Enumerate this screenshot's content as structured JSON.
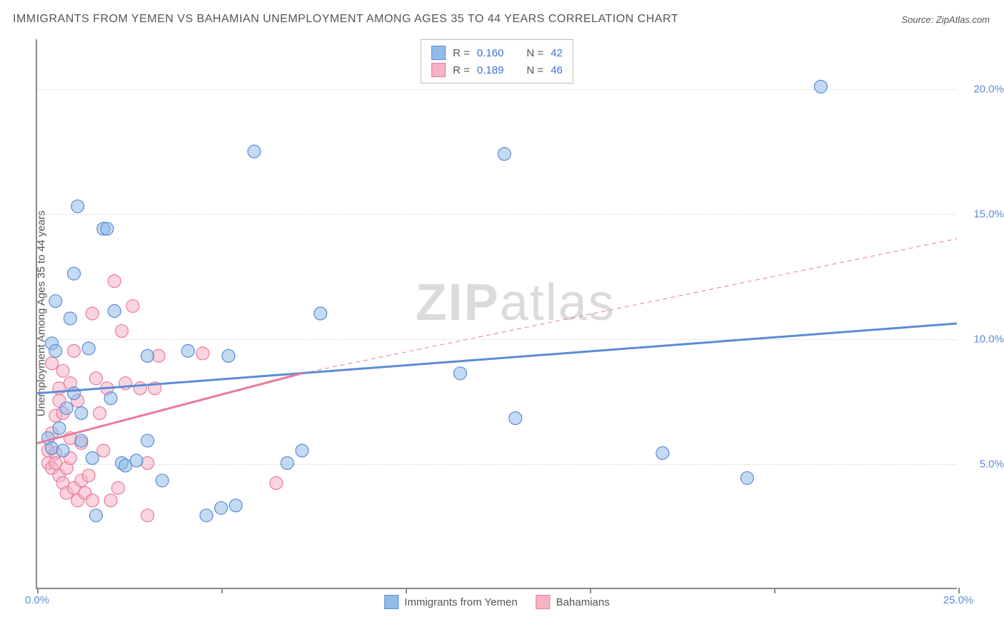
{
  "title": "IMMIGRANTS FROM YEMEN VS BAHAMIAN UNEMPLOYMENT AMONG AGES 35 TO 44 YEARS CORRELATION CHART",
  "source": "Source: ZipAtlas.com",
  "ylabel": "Unemployment Among Ages 35 to 44 years",
  "watermark_bold": "ZIP",
  "watermark_light": "atlas",
  "chart": {
    "type": "scatter",
    "xlim": [
      0,
      25
    ],
    "ylim": [
      0,
      22
    ],
    "x_ticks": [
      0,
      5,
      10,
      15,
      20,
      25
    ],
    "x_tick_labels": [
      "0.0%",
      "",
      "",
      "",
      "",
      "25.0%"
    ],
    "y_ticks": [
      5,
      10,
      15,
      20
    ],
    "y_tick_labels": [
      "5.0%",
      "10.0%",
      "15.0%",
      "20.0%"
    ],
    "y_grid": [
      5,
      10,
      15,
      20
    ],
    "background_color": "#ffffff",
    "grid_color": "#dddddd",
    "axis_color": "#888888",
    "tick_label_color": "#5b8cd6",
    "label_color": "#555555",
    "label_fontsize": 15,
    "title_fontsize": 16,
    "marker_radius": 9,
    "marker_opacity": 0.55,
    "series": [
      {
        "name": "Immigrants from Yemen",
        "color": "#8fbce8",
        "stroke": "#5b8cd6",
        "R": "0.160",
        "N": "42",
        "trend": {
          "x1": 0,
          "y1": 7.8,
          "x2": 25,
          "y2": 10.6,
          "width": 3,
          "dash": null
        },
        "trend_extrapolate": null,
        "points": [
          [
            0.3,
            6.0
          ],
          [
            0.4,
            5.6
          ],
          [
            0.4,
            9.8
          ],
          [
            0.5,
            11.5
          ],
          [
            0.5,
            9.5
          ],
          [
            0.6,
            6.4
          ],
          [
            0.7,
            5.5
          ],
          [
            0.8,
            7.2
          ],
          [
            0.9,
            10.8
          ],
          [
            1.0,
            7.8
          ],
          [
            1.0,
            12.6
          ],
          [
            1.1,
            15.3
          ],
          [
            1.2,
            5.9
          ],
          [
            1.2,
            7.0
          ],
          [
            1.4,
            9.6
          ],
          [
            1.5,
            5.2
          ],
          [
            1.6,
            2.9
          ],
          [
            1.8,
            14.4
          ],
          [
            1.9,
            14.4
          ],
          [
            2.0,
            7.6
          ],
          [
            2.1,
            11.1
          ],
          [
            2.3,
            5.0
          ],
          [
            2.4,
            4.9
          ],
          [
            2.7,
            5.1
          ],
          [
            3.0,
            9.3
          ],
          [
            3.0,
            5.9
          ],
          [
            3.4,
            4.3
          ],
          [
            4.1,
            9.5
          ],
          [
            4.6,
            2.9
          ],
          [
            5.0,
            3.2
          ],
          [
            5.2,
            9.3
          ],
          [
            5.4,
            3.3
          ],
          [
            5.9,
            17.5
          ],
          [
            6.8,
            5.0
          ],
          [
            7.2,
            5.5
          ],
          [
            7.7,
            11.0
          ],
          [
            11.5,
            8.6
          ],
          [
            13.0,
            6.8
          ],
          [
            17.0,
            5.4
          ],
          [
            19.3,
            4.4
          ],
          [
            21.3,
            20.1
          ],
          [
            12.7,
            17.4
          ]
        ]
      },
      {
        "name": "Bahamians",
        "color": "#f5b3c4",
        "stroke": "#ea7a9a",
        "R": "0.189",
        "N": "46",
        "trend": {
          "x1": 0,
          "y1": 5.8,
          "x2": 7.2,
          "y2": 8.6,
          "width": 3,
          "dash": null
        },
        "trend_extrapolate": {
          "x1": 7.2,
          "y1": 8.6,
          "x2": 25,
          "y2": 14.0,
          "width": 1,
          "dash": "6,5"
        },
        "points": [
          [
            0.3,
            5.0
          ],
          [
            0.3,
            5.5
          ],
          [
            0.4,
            4.8
          ],
          [
            0.4,
            6.2
          ],
          [
            0.4,
            9.0
          ],
          [
            0.5,
            5.4
          ],
          [
            0.5,
            5.0
          ],
          [
            0.5,
            6.9
          ],
          [
            0.6,
            4.5
          ],
          [
            0.6,
            7.5
          ],
          [
            0.6,
            8.0
          ],
          [
            0.7,
            4.2
          ],
          [
            0.7,
            8.7
          ],
          [
            0.7,
            7.0
          ],
          [
            0.8,
            4.8
          ],
          [
            0.8,
            3.8
          ],
          [
            0.9,
            5.2
          ],
          [
            0.9,
            8.2
          ],
          [
            0.9,
            6.0
          ],
          [
            1.0,
            4.0
          ],
          [
            1.0,
            9.5
          ],
          [
            1.1,
            3.5
          ],
          [
            1.1,
            7.5
          ],
          [
            1.2,
            4.3
          ],
          [
            1.2,
            5.8
          ],
          [
            1.3,
            3.8
          ],
          [
            1.4,
            4.5
          ],
          [
            1.5,
            11.0
          ],
          [
            1.5,
            3.5
          ],
          [
            1.6,
            8.4
          ],
          [
            1.7,
            7.0
          ],
          [
            1.8,
            5.5
          ],
          [
            1.9,
            8.0
          ],
          [
            2.0,
            3.5
          ],
          [
            2.1,
            12.3
          ],
          [
            2.2,
            4.0
          ],
          [
            2.3,
            10.3
          ],
          [
            2.4,
            8.2
          ],
          [
            2.6,
            11.3
          ],
          [
            2.8,
            8.0
          ],
          [
            3.0,
            2.9
          ],
          [
            3.2,
            8.0
          ],
          [
            3.3,
            9.3
          ],
          [
            4.5,
            9.4
          ],
          [
            3.0,
            5.0
          ],
          [
            6.5,
            4.2
          ]
        ]
      }
    ]
  },
  "stat_box": {
    "r_label": "R =",
    "n_label": "N ="
  },
  "legend": {
    "items": [
      "Immigrants from Yemen",
      "Bahamians"
    ]
  }
}
